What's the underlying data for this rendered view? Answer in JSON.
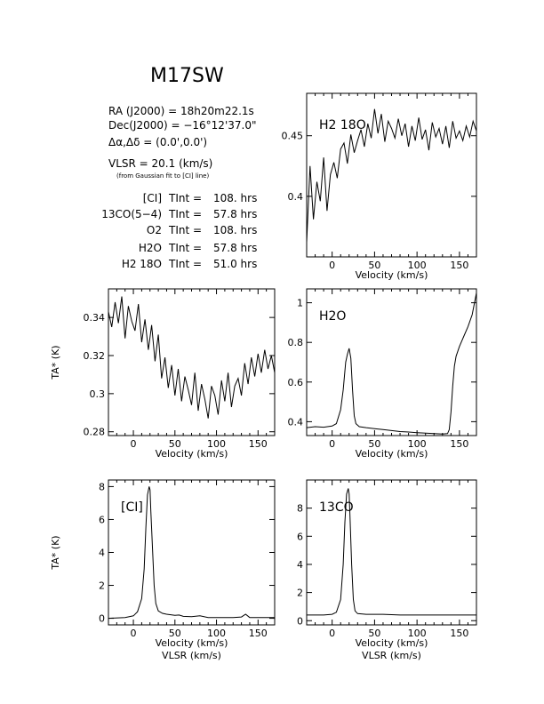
{
  "header": {
    "title": "M17SW",
    "ra": "RA (J2000) =  18h20m22.1s",
    "dec": "Dec(J2000) = −16°12'37.0\"",
    "offset": "Δα,Δδ = (0.0',0.0')",
    "vlsr": "VLSR = 20.1 (km/s)",
    "vlsr_note": "(from Gaussian fit to [CI] line)"
  },
  "integrations": [
    {
      "species": "[CI]",
      "time": "108. hrs"
    },
    {
      "species": "13CO(5−4)",
      "time": "57.8 hrs"
    },
    {
      "species": "O2",
      "time": "108. hrs"
    },
    {
      "species": "H2O",
      "time": "57.8 hrs"
    },
    {
      "species": "H2 18O",
      "time": "51.0 hrs"
    }
  ],
  "labels": {
    "tint": "TInt =",
    "velocity": "Velocity (km/s)",
    "vlsr_axis": "VLSR (km/s)",
    "ta_axis": "TA* (K)"
  },
  "chart_data": [
    {
      "type": "line",
      "panel": "H2 18O",
      "title": "H2 18O",
      "xlabel": "Velocity (km/s)",
      "ylabel": "",
      "xlim": [
        -30,
        170
      ],
      "ylim": [
        0.35,
        0.485
      ],
      "xticks": [
        0,
        50,
        100,
        150
      ],
      "yticks": [
        0.4,
        0.45
      ],
      "series": [
        {
          "x": [
            -30,
            -26,
            -22,
            -18,
            -14,
            -10,
            -6,
            -2,
            2,
            6,
            10,
            14,
            18,
            22,
            26,
            30,
            34,
            38,
            42,
            46,
            50,
            54,
            58,
            62,
            66,
            70,
            74,
            78,
            82,
            86,
            90,
            94,
            98,
            102,
            106,
            110,
            114,
            118,
            122,
            126,
            130,
            134,
            138,
            142,
            146,
            150,
            154,
            158,
            162,
            166,
            170
          ],
          "values": [
            0.362,
            0.425,
            0.381,
            0.412,
            0.396,
            0.432,
            0.388,
            0.418,
            0.428,
            0.415,
            0.439,
            0.444,
            0.427,
            0.451,
            0.436,
            0.446,
            0.455,
            0.441,
            0.46,
            0.448,
            0.472,
            0.452,
            0.468,
            0.445,
            0.462,
            0.456,
            0.448,
            0.464,
            0.45,
            0.46,
            0.441,
            0.458,
            0.446,
            0.465,
            0.447,
            0.455,
            0.438,
            0.461,
            0.449,
            0.456,
            0.443,
            0.458,
            0.44,
            0.462,
            0.448,
            0.454,
            0.446,
            0.458,
            0.449,
            0.462,
            0.454
          ]
        }
      ]
    },
    {
      "type": "line",
      "panel": "O2",
      "title": "",
      "xlabel": "Velocity (km/s)",
      "ylabel": "TA* (K)",
      "xlim": [
        -30,
        170
      ],
      "ylim": [
        0.278,
        0.355
      ],
      "xticks": [
        0,
        50,
        100,
        150
      ],
      "yticks": [
        0.28,
        0.3,
        0.32,
        0.34
      ],
      "series": [
        {
          "x": [
            -30,
            -26,
            -22,
            -18,
            -14,
            -10,
            -6,
            -2,
            2,
            6,
            10,
            14,
            18,
            22,
            26,
            30,
            34,
            38,
            42,
            46,
            50,
            54,
            58,
            62,
            66,
            70,
            74,
            78,
            82,
            86,
            90,
            94,
            98,
            102,
            106,
            110,
            114,
            118,
            122,
            126,
            130,
            134,
            138,
            142,
            146,
            150,
            154,
            158,
            162,
            166,
            170
          ],
          "values": [
            0.343,
            0.335,
            0.348,
            0.337,
            0.351,
            0.329,
            0.346,
            0.338,
            0.333,
            0.347,
            0.327,
            0.339,
            0.323,
            0.336,
            0.317,
            0.331,
            0.308,
            0.319,
            0.303,
            0.315,
            0.299,
            0.313,
            0.296,
            0.309,
            0.302,
            0.294,
            0.311,
            0.291,
            0.305,
            0.297,
            0.287,
            0.304,
            0.299,
            0.289,
            0.307,
            0.296,
            0.311,
            0.293,
            0.304,
            0.308,
            0.299,
            0.316,
            0.305,
            0.319,
            0.309,
            0.321,
            0.311,
            0.323,
            0.313,
            0.32,
            0.311
          ]
        }
      ]
    },
    {
      "type": "line",
      "panel": "H2O",
      "title": "H2O",
      "xlabel": "Velocity (km/s)",
      "ylabel": "",
      "xlim": [
        -30,
        170
      ],
      "ylim": [
        0.33,
        1.07
      ],
      "xticks": [
        0,
        50,
        100,
        150
      ],
      "yticks": [
        0.4,
        0.6,
        0.8,
        1
      ],
      "series": [
        {
          "x": [
            -30,
            -20,
            -10,
            0,
            5,
            10,
            13,
            16,
            18,
            20,
            22,
            24,
            26,
            28,
            32,
            40,
            50,
            60,
            70,
            80,
            90,
            100,
            110,
            120,
            130,
            136,
            138,
            140,
            142,
            144,
            146,
            150,
            155,
            160,
            165,
            170
          ],
          "values": [
            0.37,
            0.375,
            0.372,
            0.378,
            0.39,
            0.46,
            0.56,
            0.7,
            0.74,
            0.77,
            0.72,
            0.56,
            0.43,
            0.39,
            0.375,
            0.37,
            0.365,
            0.36,
            0.355,
            0.35,
            0.348,
            0.345,
            0.342,
            0.34,
            0.338,
            0.34,
            0.36,
            0.45,
            0.58,
            0.68,
            0.73,
            0.78,
            0.83,
            0.88,
            0.94,
            1.05
          ]
        }
      ]
    },
    {
      "type": "line",
      "panel": "[CI]",
      "title": "[CI]",
      "xlabel": "Velocity (km/s)",
      "ylabel": "TA* (K)",
      "xlim": [
        -30,
        170
      ],
      "ylim": [
        -0.4,
        8.4
      ],
      "xticks": [
        0,
        50,
        100,
        150
      ],
      "yticks": [
        0,
        2,
        4,
        6,
        8
      ],
      "series": [
        {
          "x": [
            -30,
            -10,
            0,
            5,
            10,
            13,
            15,
            17,
            19,
            20,
            21,
            23,
            25,
            27,
            30,
            35,
            40,
            50,
            55,
            60,
            70,
            80,
            90,
            100,
            110,
            120,
            130,
            135,
            140,
            150,
            160,
            170
          ],
          "values": [
            0.0,
            0.05,
            0.15,
            0.4,
            1.2,
            3.0,
            5.5,
            7.5,
            8.0,
            7.8,
            6.5,
            4.2,
            2.0,
            0.9,
            0.45,
            0.3,
            0.25,
            0.18,
            0.2,
            0.12,
            0.1,
            0.15,
            0.05,
            0.05,
            0.05,
            0.05,
            0.08,
            0.25,
            0.05,
            0.05,
            0.05,
            0.05
          ]
        }
      ]
    },
    {
      "type": "line",
      "panel": "13CO",
      "title": "13CO",
      "xlabel": "Velocity (km/s)",
      "ylabel": "",
      "xlim": [
        -30,
        170
      ],
      "ylim": [
        -0.3,
        10.0
      ],
      "xticks": [
        0,
        50,
        100,
        150
      ],
      "yticks": [
        0,
        2,
        4,
        6,
        8
      ],
      "series": [
        {
          "x": [
            -30,
            -10,
            0,
            5,
            10,
            13,
            15,
            17,
            19,
            20,
            21,
            23,
            25,
            27,
            30,
            40,
            60,
            80,
            100,
            120,
            140,
            160,
            170
          ],
          "values": [
            0.4,
            0.4,
            0.45,
            0.6,
            1.5,
            4.0,
            7.0,
            9.0,
            9.4,
            9.0,
            7.5,
            4.0,
            1.5,
            0.7,
            0.5,
            0.45,
            0.45,
            0.4,
            0.4,
            0.4,
            0.4,
            0.4,
            0.4
          ]
        }
      ]
    }
  ]
}
